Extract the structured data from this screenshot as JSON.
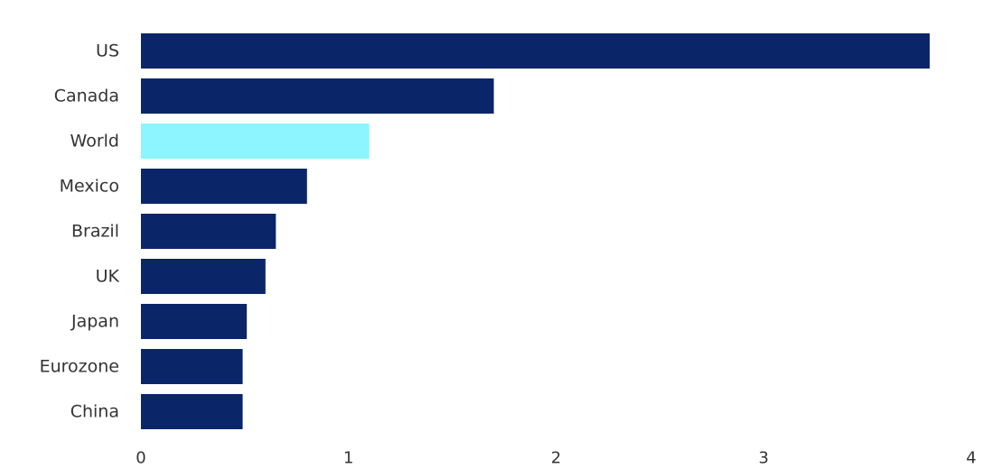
{
  "colors": {
    "bar": "#0a2668",
    "highlight": "#8cf5ff",
    "text": "#333333"
  },
  "chart_data": {
    "type": "bar",
    "orientation": "horizontal",
    "title": "",
    "xlabel": "",
    "ylabel": "",
    "categories": [
      "US",
      "Canada",
      "World",
      "Mexico",
      "Brazil",
      "UK",
      "Japan",
      "Eurozone",
      "China"
    ],
    "values": [
      3.8,
      1.7,
      1.1,
      0.8,
      0.65,
      0.6,
      0.51,
      0.49,
      0.49
    ],
    "highlight_category": "World",
    "xlim": [
      0,
      4
    ],
    "xticks": [
      "0",
      "1",
      "2",
      "3",
      "4"
    ],
    "grid": false,
    "legend": "none"
  }
}
